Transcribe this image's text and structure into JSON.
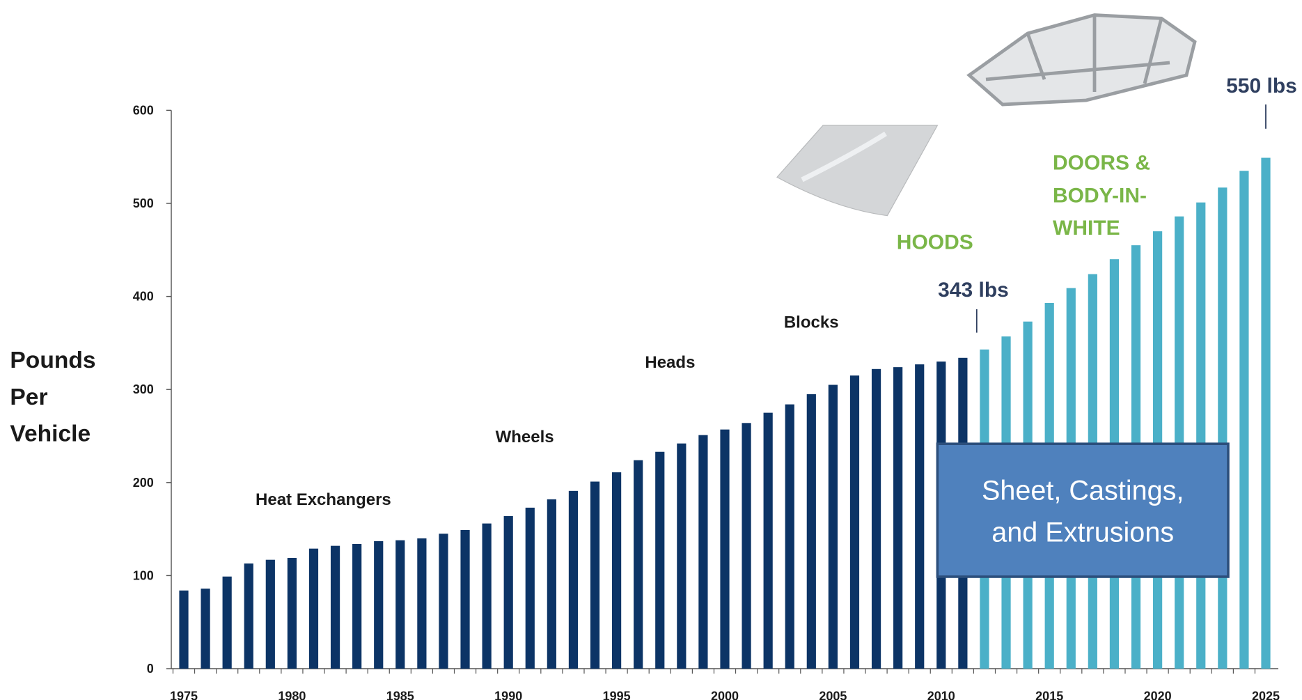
{
  "chart_data": {
    "type": "bar",
    "y_axis_label": [
      "Pounds",
      "Per",
      "Vehicle"
    ],
    "categories": [
      "1975",
      null,
      null,
      null,
      null,
      "1980",
      null,
      null,
      null,
      null,
      "1985",
      null,
      null,
      null,
      null,
      "1990",
      null,
      null,
      null,
      null,
      "1995",
      null,
      null,
      null,
      null,
      "2000",
      null,
      null,
      null,
      null,
      "2005",
      null,
      null,
      null,
      null,
      "2010",
      null,
      null,
      null,
      null,
      "2015",
      null,
      null,
      null,
      null,
      "2020",
      null,
      null,
      null,
      null,
      "2025"
    ],
    "values": [
      84,
      86,
      99,
      113,
      117,
      119,
      129,
      132,
      134,
      137,
      138,
      140,
      145,
      149,
      156,
      164,
      173,
      182,
      191,
      201,
      211,
      224,
      233,
      242,
      251,
      257,
      264,
      275,
      284,
      295,
      305,
      315,
      322,
      324,
      327,
      330,
      334,
      343,
      357,
      373,
      393,
      409,
      424,
      440,
      455,
      470,
      486,
      501,
      517,
      535,
      549
    ],
    "colors": [
      "#0c3466",
      "#0c3466",
      "#0c3466",
      "#0c3466",
      "#0c3466",
      "#0c3466",
      "#0c3466",
      "#0c3466",
      "#0c3466",
      "#0c3466",
      "#0c3466",
      "#0c3466",
      "#0c3466",
      "#0c3466",
      "#0c3466",
      "#0c3466",
      "#0c3466",
      "#0c3466",
      "#0c3466",
      "#0c3466",
      "#0c3466",
      "#0c3466",
      "#0c3466",
      "#0c3466",
      "#0c3466",
      "#0c3466",
      "#0c3466",
      "#0c3466",
      "#0c3466",
      "#0c3466",
      "#0c3466",
      "#0c3466",
      "#0c3466",
      "#0c3466",
      "#0c3466",
      "#0c3466",
      "#0c3466",
      "#4bb0c8",
      "#4bb0c8",
      "#4bb0c8",
      "#4bb0c8",
      "#4bb0c8",
      "#4bb0c8",
      "#4bb0c8",
      "#4bb0c8",
      "#4bb0c8",
      "#4bb0c8",
      "#4bb0c8",
      "#4bb0c8",
      "#4bb0c8",
      "#4bb0c8",
      "#4bb0c8"
    ],
    "ylim": [
      0,
      600
    ],
    "yticks": [
      0,
      100,
      200,
      300,
      400,
      500,
      600
    ],
    "annotations": {
      "heat_exchangers": "Heat Exchangers",
      "wheels": "Wheels",
      "heads": "Heads",
      "blocks": "Blocks",
      "hoods": "HOODS",
      "doors": [
        "DOORS &",
        "BODY-IN-",
        "WHITE"
      ],
      "lbs_2012": "343 lbs",
      "lbs_2025": "550 lbs",
      "box": [
        "Sheet, Castings,",
        "and Extrusions"
      ]
    }
  }
}
